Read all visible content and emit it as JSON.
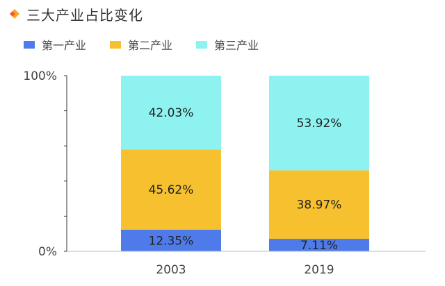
{
  "chart_data": {
    "type": "bar",
    "stacked": true,
    "title": "三大产业占比变化",
    "categories": [
      "2003",
      "2019"
    ],
    "series": [
      {
        "name": "第一产业",
        "values": [
          12.35,
          7.11
        ],
        "labels": [
          "12.35%",
          "7.11%"
        ],
        "color": "#4F7BEA"
      },
      {
        "name": "第二产业",
        "values": [
          45.62,
          38.97
        ],
        "labels": [
          "45.62%",
          "38.97%"
        ],
        "color": "#F7C02E"
      },
      {
        "name": "第三产业",
        "values": [
          42.03,
          53.92
        ],
        "labels": [
          "42.03%",
          "53.92%"
        ],
        "color": "#8DF2F0"
      }
    ],
    "ylim": [
      0,
      100
    ],
    "y_tick_labels": [
      {
        "value": 0,
        "label": "0%"
      },
      {
        "value": 100,
        "label": "100%"
      }
    ],
    "y_minor_ticks": [
      0,
      20,
      40,
      60,
      80,
      100
    ],
    "legend_position": "top-left",
    "grid": false
  },
  "header": {
    "icon": "diamond-icon",
    "icon_colors": [
      "#F7A623",
      "#F25C2A"
    ]
  }
}
